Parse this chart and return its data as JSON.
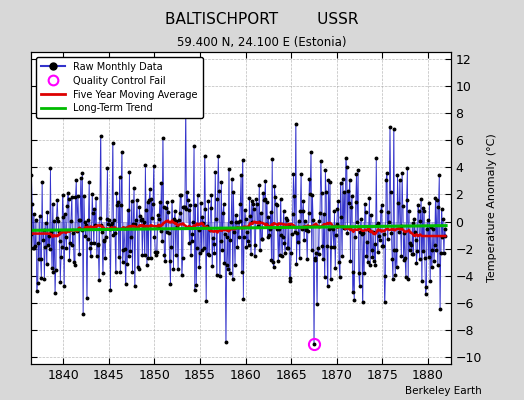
{
  "title": "BALTISCHPORT        USSR",
  "subtitle": "59.400 N, 24.100 E (Estonia)",
  "ylabel": "Temperature Anomaly (°C)",
  "credit": "Berkeley Earth",
  "xlim": [
    1836.5,
    1882.5
  ],
  "ylim": [
    -10.5,
    12.5
  ],
  "yticks": [
    -10,
    -8,
    -6,
    -4,
    -2,
    0,
    2,
    4,
    6,
    8,
    10,
    12
  ],
  "xticks": [
    1840,
    1845,
    1850,
    1855,
    1860,
    1865,
    1870,
    1875,
    1880
  ],
  "outer_bg": "#d8d8d8",
  "plot_bg": "#ffffff",
  "raw_color": "#3333cc",
  "raw_fill_color": "#8888dd",
  "moving_avg_color": "#dd0000",
  "trend_color": "#00bb00",
  "qc_fail_color": "#ff00ff",
  "seed": 42,
  "n_years": 46,
  "start_year": 1836,
  "qc_fail_year": 1867.5,
  "qc_fail_value": -9.0
}
